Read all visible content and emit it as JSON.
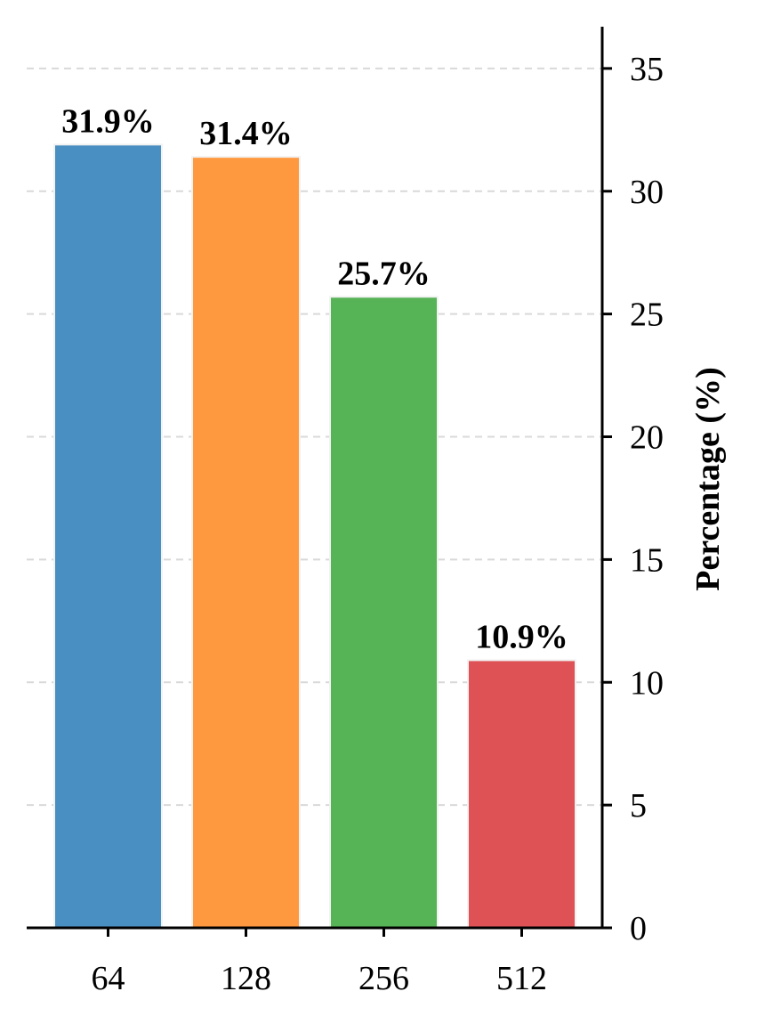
{
  "chart_data": {
    "type": "bar",
    "categories": [
      "64",
      "128",
      "256",
      "512"
    ],
    "values": [
      31.9,
      31.4,
      25.7,
      10.9
    ],
    "value_labels": [
      "31.9%",
      "31.4%",
      "25.7%",
      "10.9%"
    ],
    "bar_colors": [
      "#4a8fc1",
      "#ff9940",
      "#56b356",
      "#de5155"
    ],
    "title": "",
    "xlabel": "",
    "ylabel": "Percentage (%)",
    "ylim": [
      0,
      36.7
    ],
    "yticks": [
      0,
      5,
      10,
      15,
      20,
      25,
      30,
      35
    ],
    "ytick_labels": [
      "0",
      "5",
      "10",
      "15",
      "20",
      "25",
      "30",
      "35"
    ],
    "y_axis_side": "right",
    "grid": "horizontal dashed"
  }
}
